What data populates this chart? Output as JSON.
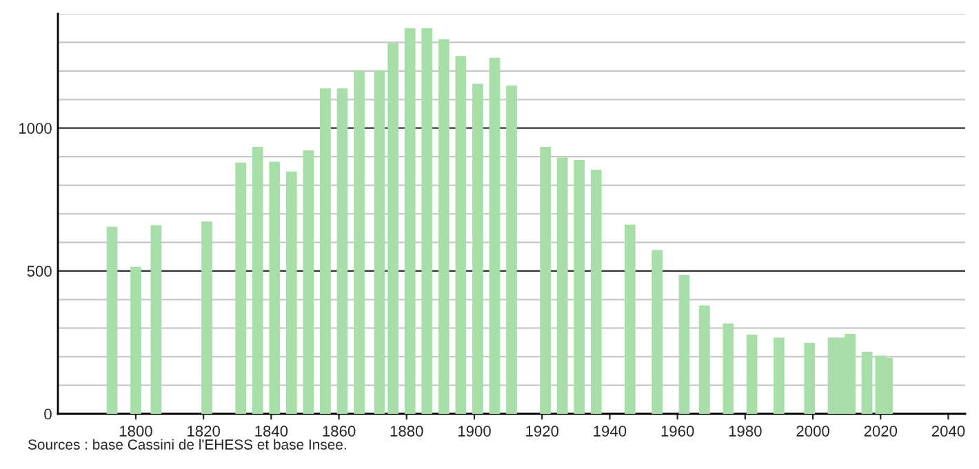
{
  "chart_data": {
    "type": "bar",
    "color": "#a8dea8",
    "x": [
      1793,
      1800,
      1806,
      1821,
      1831,
      1836,
      1841,
      1846,
      1851,
      1856,
      1861,
      1866,
      1872,
      1876,
      1881,
      1886,
      1891,
      1896,
      1901,
      1906,
      1911,
      1921,
      1926,
      1931,
      1936,
      1946,
      1954,
      1962,
      1968,
      1975,
      1982,
      1990,
      1999,
      2006,
      2008,
      2011,
      2016,
      2020,
      2022
    ],
    "values": [
      655,
      515,
      660,
      673,
      879,
      934,
      882,
      848,
      922,
      1139,
      1139,
      1202,
      1202,
      1298,
      1350,
      1350,
      1311,
      1252,
      1155,
      1246,
      1149,
      934,
      897,
      888,
      854,
      662,
      573,
      485,
      379,
      316,
      277,
      267,
      248,
      267,
      267,
      280,
      217,
      204,
      197
    ],
    "xlim": [
      1777,
      2045
    ],
    "xticks": [
      1800,
      1820,
      1840,
      1860,
      1880,
      1900,
      1920,
      1940,
      1960,
      1980,
      2000,
      2020,
      2040
    ],
    "ylim": [
      0,
      1400
    ],
    "yticks": [
      0,
      {
        "value": 100,
        "label": null
      },
      {
        "value": 200,
        "label": null
      },
      {
        "value": 300,
        "label": null
      },
      {
        "value": 400,
        "label": null
      },
      500,
      {
        "value": 600,
        "label": null
      },
      {
        "value": 700,
        "label": null
      },
      {
        "value": 800,
        "label": null
      },
      {
        "value": 900,
        "label": null
      },
      1000,
      {
        "value": 1100,
        "label": null
      },
      {
        "value": 1200,
        "label": null
      },
      {
        "value": 1300,
        "label": null
      },
      {
        "value": 1400,
        "label": null
      }
    ],
    "grid": "y",
    "annotations": [
      "Sources : base Cassini de l'EHESS et base Insee."
    ]
  }
}
